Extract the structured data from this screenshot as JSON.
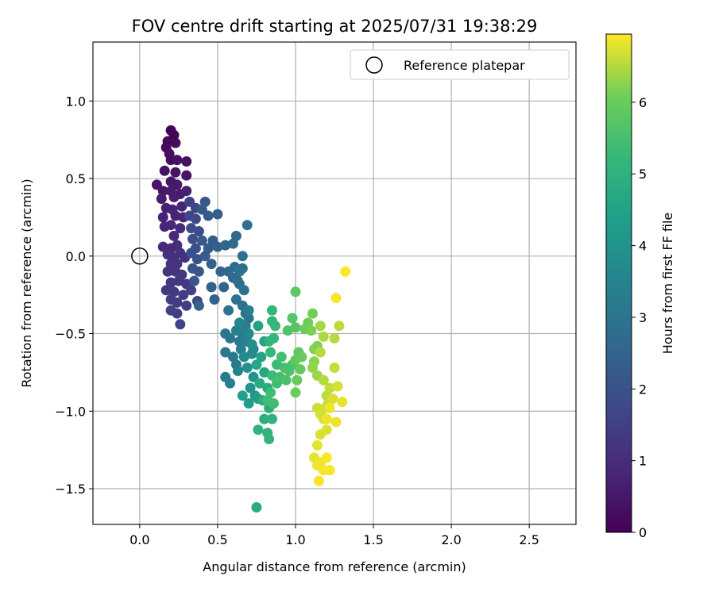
{
  "chart_data": {
    "type": "scatter",
    "title": "FOV centre drift starting at 2025/07/31 19:38:29",
    "xlabel": "Angular distance from reference (arcmin)",
    "ylabel": "Rotation from reference (arcmin)",
    "xlim": [
      -0.3,
      2.8
    ],
    "ylim": [
      -1.73,
      1.38
    ],
    "xticks": [
      0.0,
      0.5,
      1.0,
      1.5,
      2.0,
      2.5
    ],
    "xtick_labels": [
      "0.0",
      "0.5",
      "1.0",
      "1.5",
      "2.0",
      "2.5"
    ],
    "yticks": [
      1.0,
      0.5,
      0.0,
      -0.5,
      -1.0,
      -1.5
    ],
    "ytick_labels": [
      "1.0",
      "0.5",
      "0.0",
      "−0.5",
      "−1.0",
      "−1.5"
    ],
    "grid": true,
    "legend": {
      "placement": "top-right",
      "entries": [
        "Reference platepar"
      ]
    },
    "reference_point": {
      "x": 0.0,
      "y": 0.0
    },
    "colorbar": {
      "label": "Hours from first FF file",
      "colormap": "viridis",
      "range": [
        0,
        6.95
      ],
      "ticks": [
        0,
        1,
        2,
        3,
        4,
        5,
        6
      ],
      "tick_labels": [
        "0",
        "1",
        "2",
        "3",
        "4",
        "5",
        "6"
      ]
    },
    "points": [
      [
        0.2,
        0.81,
        0.05
      ],
      [
        0.22,
        0.78,
        0.1
      ],
      [
        0.18,
        0.74,
        0.15
      ],
      [
        0.23,
        0.73,
        0.2
      ],
      [
        0.17,
        0.7,
        0.25
      ],
      [
        0.19,
        0.66,
        0.3
      ],
      [
        0.2,
        0.62,
        0.3
      ],
      [
        0.24,
        0.62,
        0.35
      ],
      [
        0.3,
        0.61,
        0.35
      ],
      [
        0.16,
        0.55,
        0.4
      ],
      [
        0.23,
        0.54,
        0.4
      ],
      [
        0.3,
        0.52,
        0.45
      ],
      [
        0.11,
        0.46,
        0.45
      ],
      [
        0.2,
        0.48,
        0.5
      ],
      [
        0.24,
        0.46,
        0.55
      ],
      [
        0.15,
        0.42,
        0.5
      ],
      [
        0.2,
        0.42,
        0.6
      ],
      [
        0.26,
        0.4,
        0.65
      ],
      [
        0.3,
        0.42,
        0.7
      ],
      [
        0.14,
        0.37,
        0.6
      ],
      [
        0.22,
        0.38,
        0.65
      ],
      [
        0.17,
        0.31,
        0.7
      ],
      [
        0.21,
        0.3,
        0.75
      ],
      [
        0.27,
        0.32,
        0.8
      ],
      [
        0.15,
        0.25,
        0.75
      ],
      [
        0.23,
        0.26,
        0.8
      ],
      [
        0.28,
        0.25,
        0.85
      ],
      [
        0.16,
        0.19,
        0.85
      ],
      [
        0.2,
        0.2,
        0.9
      ],
      [
        0.26,
        0.18,
        0.95
      ],
      [
        0.22,
        0.13,
        0.9
      ],
      [
        0.15,
        0.06,
        0.95
      ],
      [
        0.2,
        0.05,
        1.0
      ],
      [
        0.24,
        0.07,
        1.0
      ],
      [
        0.18,
        0.01,
        1.05
      ],
      [
        0.22,
        -0.01,
        1.05
      ],
      [
        0.26,
        0.02,
        1.1
      ],
      [
        0.29,
        -0.01,
        1.1
      ],
      [
        0.2,
        -0.05,
        1.15
      ],
      [
        0.24,
        -0.05,
        1.15
      ],
      [
        0.18,
        -0.1,
        1.2
      ],
      [
        0.23,
        -0.1,
        1.2
      ],
      [
        0.27,
        -0.12,
        1.25
      ],
      [
        0.2,
        -0.17,
        1.25
      ],
      [
        0.25,
        -0.16,
        1.3
      ],
      [
        0.3,
        -0.18,
        1.3
      ],
      [
        0.17,
        -0.22,
        1.35
      ],
      [
        0.22,
        -0.23,
        1.35
      ],
      [
        0.28,
        -0.25,
        1.4
      ],
      [
        0.2,
        -0.28,
        1.4
      ],
      [
        0.24,
        -0.3,
        1.45
      ],
      [
        0.3,
        -0.32,
        1.45
      ],
      [
        0.2,
        -0.35,
        1.5
      ],
      [
        0.24,
        -0.37,
        1.5
      ],
      [
        0.26,
        -0.44,
        1.55
      ],
      [
        0.33,
        -0.22,
        1.55
      ],
      [
        0.37,
        -0.29,
        1.6
      ],
      [
        0.32,
        0.35,
        1.6
      ],
      [
        0.36,
        0.31,
        1.65
      ],
      [
        0.32,
        0.26,
        1.7
      ],
      [
        0.36,
        0.24,
        1.75
      ],
      [
        0.33,
        0.18,
        1.8
      ],
      [
        0.38,
        0.16,
        1.85
      ],
      [
        0.34,
        0.11,
        1.9
      ],
      [
        0.36,
        0.05,
        1.95
      ],
      [
        0.33,
        0.02,
        2.0
      ],
      [
        0.37,
        -0.02,
        2.0
      ],
      [
        0.34,
        -0.08,
        2.05
      ],
      [
        0.38,
        -0.1,
        2.1
      ],
      [
        0.35,
        -0.16,
        2.1
      ],
      [
        0.42,
        0.35,
        2.1
      ],
      [
        0.4,
        0.3,
        2.15
      ],
      [
        0.44,
        0.26,
        2.2
      ],
      [
        0.4,
        0.1,
        2.2
      ],
      [
        0.44,
        0.05,
        2.25
      ],
      [
        0.42,
        0.0,
        2.25
      ],
      [
        0.5,
        0.27,
        2.3
      ],
      [
        0.47,
        0.1,
        2.3
      ],
      [
        0.5,
        0.06,
        2.35
      ],
      [
        0.46,
        -0.05,
        2.35
      ],
      [
        0.46,
        -0.2,
        2.4
      ],
      [
        0.48,
        -0.28,
        2.45
      ],
      [
        0.38,
        -0.32,
        2.45
      ],
      [
        0.54,
        -0.2,
        2.5
      ],
      [
        0.52,
        -0.1,
        2.5
      ],
      [
        0.55,
        0.07,
        2.55
      ],
      [
        0.6,
        0.08,
        2.6
      ],
      [
        0.62,
        0.13,
        2.6
      ],
      [
        0.57,
        -0.1,
        2.65
      ],
      [
        0.6,
        -0.14,
        2.7
      ],
      [
        0.63,
        -0.16,
        2.75
      ],
      [
        0.61,
        -0.07,
        2.7
      ],
      [
        0.66,
        -0.08,
        2.8
      ],
      [
        0.64,
        -0.18,
        2.85
      ],
      [
        0.67,
        -0.22,
        2.9
      ],
      [
        0.62,
        -0.28,
        2.9
      ],
      [
        0.66,
        -0.32,
        2.95
      ],
      [
        0.68,
        -0.37,
        3.0
      ],
      [
        0.7,
        -0.4,
        3.05
      ],
      [
        0.57,
        -0.35,
        3.0
      ],
      [
        0.55,
        -0.5,
        3.05
      ],
      [
        0.58,
        -0.53,
        3.1
      ],
      [
        0.55,
        -0.62,
        3.1
      ],
      [
        0.6,
        -0.65,
        3.15
      ],
      [
        0.62,
        -0.7,
        3.2
      ],
      [
        0.64,
        -0.55,
        3.2
      ],
      [
        0.66,
        -0.5,
        3.25
      ],
      [
        0.68,
        -0.45,
        3.3
      ],
      [
        0.7,
        -0.35,
        3.3
      ],
      [
        0.62,
        -0.48,
        3.35
      ],
      [
        0.65,
        -0.6,
        3.4
      ],
      [
        0.69,
        -0.55,
        3.5
      ],
      [
        0.73,
        -0.6,
        3.55
      ],
      [
        0.55,
        -0.78,
        3.2
      ],
      [
        0.58,
        -0.82,
        3.3
      ],
      [
        0.63,
        -0.74,
        3.45
      ],
      [
        0.69,
        0.2,
        2.9
      ],
      [
        0.66,
        0.0,
        2.95
      ],
      [
        0.64,
        -0.1,
        3.0
      ],
      [
        0.64,
        -0.43,
        3.6
      ],
      [
        0.7,
        -0.5,
        3.7
      ],
      [
        0.72,
        -0.63,
        3.75
      ],
      [
        0.67,
        -0.65,
        3.8
      ],
      [
        0.69,
        -0.72,
        3.9
      ],
      [
        0.73,
        -0.78,
        4.0
      ],
      [
        0.71,
        -0.85,
        4.1
      ],
      [
        0.74,
        -0.9,
        4.2
      ],
      [
        0.7,
        -0.95,
        4.3
      ],
      [
        0.76,
        -0.92,
        4.3
      ],
      [
        0.66,
        -0.9,
        4.4
      ],
      [
        0.72,
        -0.57,
        3.9
      ],
      [
        0.76,
        -0.45,
        4.5
      ],
      [
        0.8,
        -0.55,
        4.55
      ],
      [
        0.78,
        -0.65,
        4.6
      ],
      [
        0.75,
        -0.7,
        4.65
      ],
      [
        0.8,
        -0.75,
        4.7
      ],
      [
        0.77,
        -0.82,
        4.75
      ],
      [
        0.82,
        -0.85,
        4.8
      ],
      [
        0.79,
        -0.93,
        4.8
      ],
      [
        0.83,
        -0.98,
        4.9
      ],
      [
        0.8,
        -1.05,
        4.95
      ],
      [
        0.85,
        -1.05,
        5.0
      ],
      [
        0.76,
        -1.12,
        5.0
      ],
      [
        0.82,
        -1.14,
        5.05
      ],
      [
        0.83,
        -1.18,
        5.1
      ],
      [
        0.75,
        -1.62,
        4.8
      ],
      [
        0.83,
        -0.55,
        5.1
      ],
      [
        0.85,
        -0.42,
        5.15
      ],
      [
        0.85,
        -0.35,
        5.15
      ],
      [
        0.87,
        -0.45,
        5.2
      ],
      [
        0.86,
        -0.53,
        5.2
      ],
      [
        0.84,
        -0.62,
        5.25
      ],
      [
        0.88,
        -0.7,
        5.3
      ],
      [
        0.85,
        -0.77,
        5.3
      ],
      [
        0.88,
        -0.82,
        5.35
      ],
      [
        0.84,
        -0.88,
        5.35
      ],
      [
        0.82,
        -0.93,
        5.4
      ],
      [
        0.86,
        -0.95,
        5.4
      ],
      [
        0.91,
        -0.65,
        5.45
      ],
      [
        0.93,
        -0.72,
        5.5
      ],
      [
        0.9,
        -0.78,
        5.5
      ],
      [
        0.94,
        -0.8,
        5.55
      ],
      [
        0.96,
        -0.74,
        5.6
      ],
      [
        0.98,
        -0.7,
        5.6
      ],
      [
        0.95,
        -0.48,
        5.65
      ],
      [
        0.98,
        -0.4,
        5.7
      ],
      [
        1.0,
        -0.46,
        5.75
      ],
      [
        1.0,
        -0.23,
        5.8
      ],
      [
        1.02,
        -0.62,
        5.8
      ],
      [
        1.0,
        -0.67,
        5.85
      ],
      [
        1.03,
        -0.73,
        5.9
      ],
      [
        1.01,
        -0.8,
        5.95
      ],
      [
        1.0,
        -0.88,
        6.0
      ],
      [
        1.04,
        -0.65,
        5.95
      ],
      [
        1.06,
        -0.47,
        6.0
      ],
      [
        1.08,
        -0.43,
        6.05
      ],
      [
        1.11,
        -0.37,
        6.1
      ],
      [
        1.1,
        -0.48,
        6.15
      ],
      [
        1.12,
        -0.6,
        6.2
      ],
      [
        1.14,
        -0.58,
        6.2
      ],
      [
        1.12,
        -0.68,
        6.25
      ],
      [
        1.11,
        -0.72,
        6.3
      ],
      [
        1.14,
        -0.77,
        6.35
      ],
      [
        1.16,
        -0.45,
        6.4
      ],
      [
        1.18,
        -0.52,
        6.45
      ],
      [
        1.16,
        -0.62,
        6.5
      ],
      [
        1.18,
        -0.8,
        6.5
      ],
      [
        1.2,
        -0.9,
        6.55
      ],
      [
        1.22,
        -0.85,
        6.6
      ],
      [
        1.21,
        -0.95,
        6.6
      ],
      [
        1.19,
        -0.98,
        6.65
      ],
      [
        1.14,
        -0.98,
        6.65
      ],
      [
        1.16,
        -1.02,
        6.7
      ],
      [
        1.18,
        -1.05,
        6.7
      ],
      [
        1.2,
        -1.12,
        6.75
      ],
      [
        1.16,
        -1.15,
        6.75
      ],
      [
        1.14,
        -1.22,
        6.8
      ],
      [
        1.12,
        -1.3,
        6.8
      ],
      [
        1.16,
        -1.33,
        6.85
      ],
      [
        1.14,
        -1.35,
        6.85
      ],
      [
        1.18,
        -1.38,
        6.9
      ],
      [
        1.15,
        -1.45,
        6.9
      ],
      [
        1.2,
        -1.3,
        6.92
      ],
      [
        1.22,
        -1.38,
        6.93
      ],
      [
        1.25,
        -0.72,
        6.6
      ],
      [
        1.27,
        -0.84,
        6.7
      ],
      [
        1.24,
        -0.92,
        6.75
      ],
      [
        1.3,
        -0.94,
        6.8
      ],
      [
        1.26,
        -1.07,
        6.85
      ],
      [
        1.25,
        -0.53,
        6.5
      ],
      [
        1.28,
        -0.45,
        6.55
      ],
      [
        1.26,
        -0.27,
        6.9
      ],
      [
        1.32,
        -0.1,
        6.95
      ],
      [
        1.2,
        -1.05,
        6.85
      ],
      [
        1.22,
        -0.98,
        6.88
      ]
    ]
  }
}
